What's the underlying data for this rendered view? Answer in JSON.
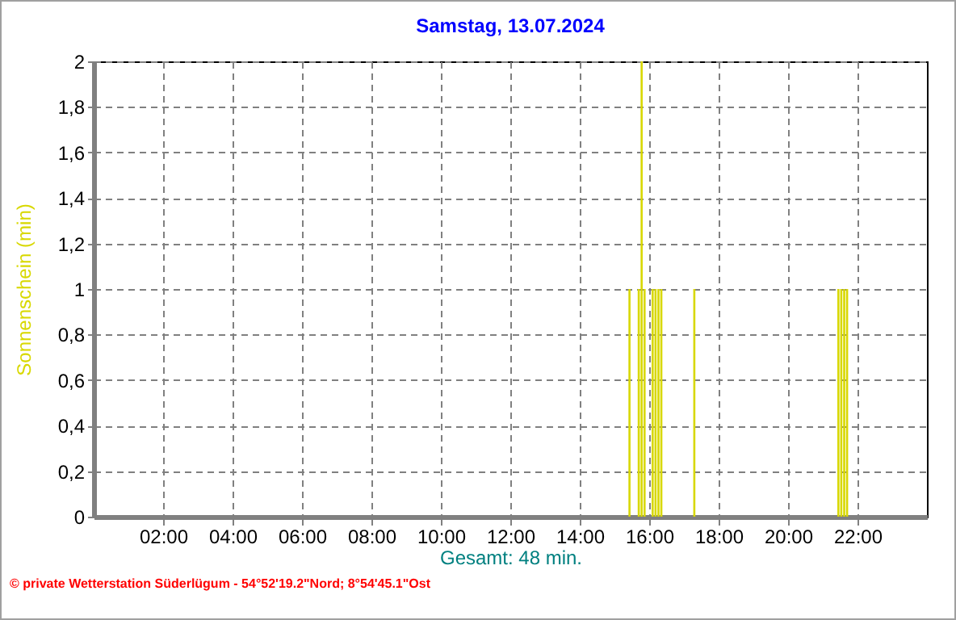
{
  "chart_data": {
    "type": "bar",
    "title": "Samstag, 13.07.2024",
    "ylabel": "Sonnenschein  (min)",
    "xlabel": "Gesamt: 48 min.",
    "annotations": [
      "© private Wetterstation Süderlügum - 54°52'19.2\"Nord; 8°54'45.1\"Ost"
    ],
    "x": [
      15.433,
      15.7,
      15.783,
      15.867,
      16.1,
      16.183,
      16.267,
      16.35,
      17.3,
      21.45,
      21.533,
      21.617,
      21.7
    ],
    "values": [
      1,
      1,
      2,
      1,
      1,
      1,
      1,
      1,
      1,
      1,
      1,
      1,
      1
    ],
    "color": "#d8d800",
    "xlim": [
      0,
      24
    ],
    "xticks": [
      {
        "value": 2,
        "label": "02:00"
      },
      {
        "value": 4,
        "label": "04:00"
      },
      {
        "value": 6,
        "label": "06:00"
      },
      {
        "value": 8,
        "label": "08:00"
      },
      {
        "value": 10,
        "label": "10:00"
      },
      {
        "value": 12,
        "label": "12:00"
      },
      {
        "value": 14,
        "label": "14:00"
      },
      {
        "value": 16,
        "label": "16:00"
      },
      {
        "value": 18,
        "label": "18:00"
      },
      {
        "value": 20,
        "label": "20:00"
      },
      {
        "value": 22,
        "label": "22:00"
      }
    ],
    "ylim": [
      0,
      2
    ],
    "yticks": [
      0,
      {
        "value": 0.2,
        "label": "0,2"
      },
      {
        "value": 0.4,
        "label": "0,4"
      },
      {
        "value": 0.6,
        "label": "0,6"
      },
      {
        "value": 0.8,
        "label": "0,8"
      },
      1,
      {
        "value": 1.2,
        "label": "1,2"
      },
      {
        "value": 1.4,
        "label": "1,4"
      },
      {
        "value": 1.6,
        "label": "1,6"
      },
      {
        "value": 1.8,
        "label": "1,8"
      },
      2
    ],
    "grid": true
  }
}
